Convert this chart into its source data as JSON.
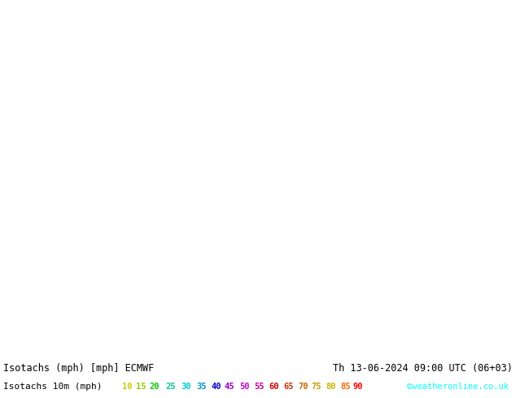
{
  "title_left": "Isotachs (mph) [mph] ECMWF",
  "title_right": "Th 13-06-2024 09:00 UTC (06+03)",
  "legend_label": "Isotachs 10m (mph)",
  "legend_values": [
    10,
    15,
    20,
    25,
    30,
    35,
    40,
    45,
    50,
    55,
    60,
    65,
    70,
    75,
    80,
    85,
    90
  ],
  "legend_colors": [
    "#c8c800",
    "#96c800",
    "#00c800",
    "#00c896",
    "#00c8c8",
    "#0096c8",
    "#0000c8",
    "#9600c8",
    "#c800c8",
    "#c80096",
    "#c80000",
    "#c83200",
    "#c86400",
    "#c89600",
    "#c8b400",
    "#ff6600",
    "#ff0000"
  ],
  "copyright": "©weatheronline.co.uk",
  "fig_width": 6.34,
  "fig_height": 4.9,
  "dpi": 100,
  "footer_bg": "#ffffff",
  "map_bg": "#c8e696",
  "footer_line1_fontsize": 8.5,
  "footer_line2_fontsize": 8.0,
  "legend_value_fontsize": 7.5
}
